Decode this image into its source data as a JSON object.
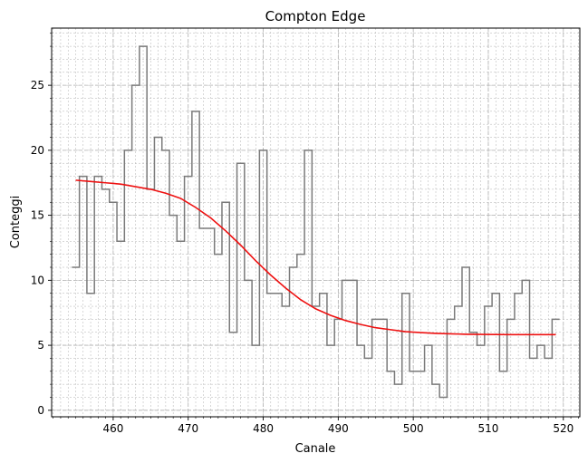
{
  "chart_data": {
    "type": "line",
    "title": "Compton Edge",
    "xlabel": "Canale",
    "ylabel": "Conteggi",
    "xlim": [
      451.8,
      522.2
    ],
    "ylim": [
      -0.5,
      29.4
    ],
    "xticks": [
      460,
      470,
      480,
      490,
      500,
      510,
      520
    ],
    "yticks": [
      0,
      5,
      10,
      15,
      20,
      25
    ],
    "x_minor_step": 1,
    "y_minor_step": 1,
    "grid": true,
    "legend": "none",
    "colors": {
      "histogram": "#7a7a7a",
      "fit": "#ee1111",
      "grid": "#b0b0b0"
    },
    "series": [
      {
        "type": "step",
        "x": [
          455,
          456,
          457,
          458,
          459,
          460,
          461,
          462,
          463,
          464,
          465,
          466,
          467,
          468,
          469,
          470,
          471,
          472,
          473,
          474,
          475,
          476,
          477,
          478,
          479,
          480,
          481,
          482,
          483,
          484,
          485,
          486,
          487,
          488,
          489,
          490,
          491,
          492,
          493,
          494,
          495,
          496,
          497,
          498,
          499,
          500,
          501,
          502,
          503,
          504,
          505,
          506,
          507,
          508,
          509,
          510,
          511,
          512,
          513,
          514,
          515,
          516,
          517,
          518,
          519
        ],
        "values": [
          11,
          18,
          9,
          18,
          17,
          16,
          13,
          20,
          25,
          28,
          17,
          21,
          20,
          15,
          13,
          18,
          23,
          14,
          14,
          12,
          16,
          6,
          19,
          10,
          5,
          20,
          9,
          9,
          8,
          11,
          12,
          20,
          8,
          9,
          5,
          7,
          10,
          10,
          5,
          4,
          7,
          7,
          3,
          2,
          9,
          3,
          3,
          5,
          2,
          1,
          7,
          8,
          11,
          6,
          5,
          8,
          9,
          3,
          7,
          9,
          10,
          4,
          5,
          4,
          7
        ]
      },
      {
        "type": "line",
        "x": [
          455,
          457,
          459,
          461,
          463,
          465,
          467,
          469,
          471,
          473,
          475,
          477,
          479,
          481,
          483,
          485,
          487,
          489,
          491,
          493,
          495,
          497,
          499,
          501,
          503,
          505,
          507,
          509,
          511,
          513,
          515,
          517,
          519
        ],
        "values": [
          17.7,
          17.6,
          17.5,
          17.4,
          17.2,
          17.0,
          16.7,
          16.3,
          15.6,
          14.8,
          13.8,
          12.7,
          11.5,
          10.4,
          9.4,
          8.5,
          7.8,
          7.3,
          6.9,
          6.6,
          6.35,
          6.2,
          6.05,
          5.98,
          5.92,
          5.88,
          5.85,
          5.84,
          5.83,
          5.82,
          5.82,
          5.82,
          5.82
        ]
      }
    ]
  }
}
